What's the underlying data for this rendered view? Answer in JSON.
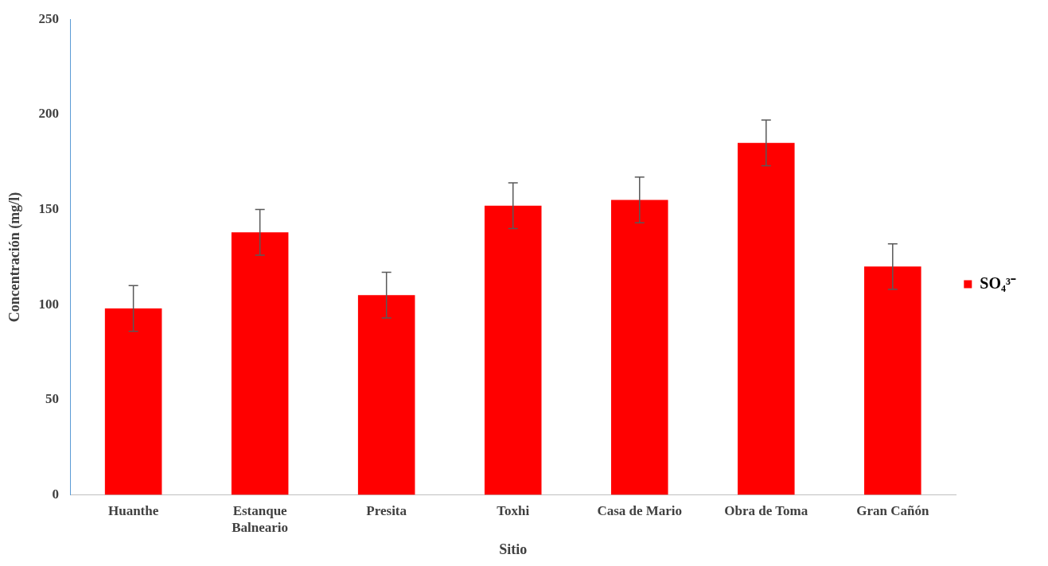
{
  "chart_data": {
    "type": "bar",
    "xlabel": "Sitio",
    "ylabel": "Concentración (mg/l)",
    "categories": [
      "Huanthe",
      "Estanque Balneario",
      "Presita",
      "Toxhi",
      "Casa de Mario",
      "Obra de Toma",
      "Gran Cañón"
    ],
    "series": [
      {
        "name": "SO₄³⁻",
        "color": "#ff0000",
        "values": [
          98,
          138,
          105,
          152,
          155,
          185,
          120
        ],
        "errors": [
          12,
          12,
          12,
          12,
          12,
          12,
          12
        ]
      }
    ],
    "ylim": [
      0,
      250
    ],
    "yticks": [
      0,
      50,
      100,
      150,
      200,
      250
    ],
    "grid": false,
    "legend": "right"
  }
}
